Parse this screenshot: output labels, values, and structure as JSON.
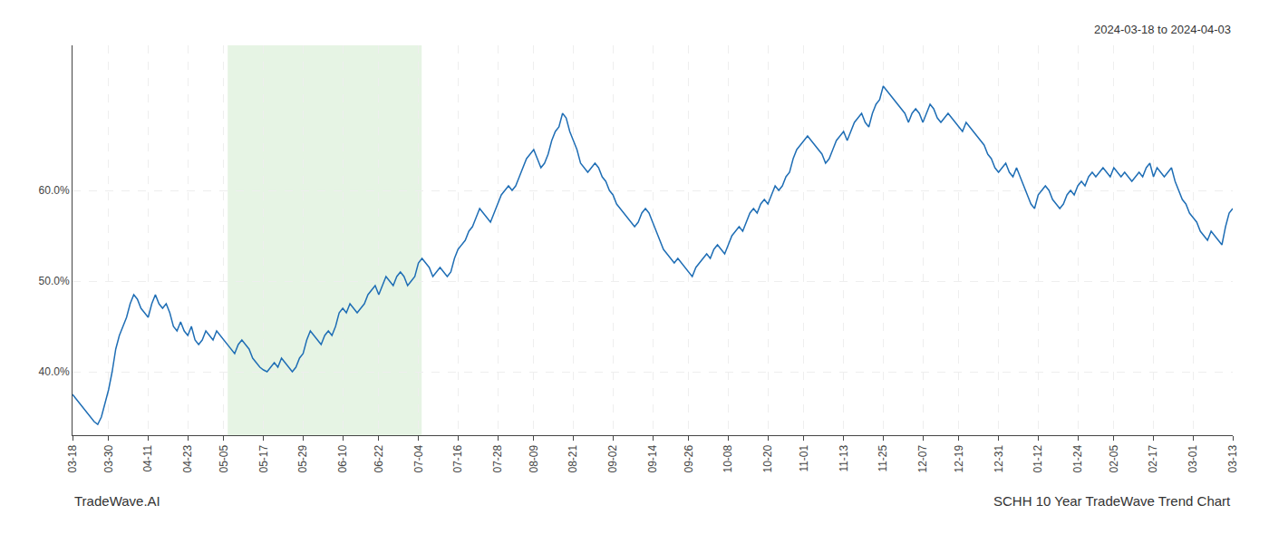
{
  "chart_data": {
    "type": "line",
    "annotations": [
      "2024-03-18 to 2024-04-03",
      "TradeWave.AI",
      "SCHH 10 Year TradeWave Trend Chart"
    ],
    "color": "#1f6eb5",
    "grid": true,
    "highlight": {
      "x": [
        43.0667,
        96.9
      ],
      "color": "#d6ecd2"
    },
    "ylim": [
      33,
      76
    ],
    "yticks": [
      {
        "value": 40.0,
        "label": "40.0%"
      },
      {
        "value": 50.0,
        "label": "50.0%"
      },
      {
        "value": 60.0,
        "label": "60.0%"
      }
    ],
    "categories": [
      "03-18",
      null,
      null,
      null,
      null,
      null,
      null,
      null,
      null,
      null,
      "03-30",
      null,
      null,
      null,
      null,
      null,
      null,
      null,
      null,
      null,
      null,
      "04-11",
      null,
      null,
      null,
      null,
      null,
      null,
      null,
      null,
      null,
      null,
      "04-23",
      null,
      null,
      null,
      null,
      null,
      null,
      null,
      null,
      null,
      "05-05",
      null,
      null,
      null,
      null,
      null,
      null,
      null,
      null,
      null,
      null,
      "05-17",
      null,
      null,
      null,
      null,
      null,
      null,
      null,
      null,
      null,
      null,
      "05-29",
      null,
      null,
      null,
      null,
      null,
      null,
      null,
      null,
      null,
      null,
      "06-10",
      null,
      null,
      null,
      null,
      null,
      null,
      null,
      null,
      null,
      "06-22",
      null,
      null,
      null,
      null,
      null,
      null,
      null,
      null,
      null,
      null,
      "07-04",
      null,
      null,
      null,
      null,
      null,
      null,
      null,
      null,
      null,
      null,
      "07-16",
      null,
      null,
      null,
      null,
      null,
      null,
      null,
      null,
      null,
      null,
      "07-28",
      null,
      null,
      null,
      null,
      null,
      null,
      null,
      null,
      null,
      "08-09",
      null,
      null,
      null,
      null,
      null,
      null,
      null,
      null,
      null,
      null,
      "08-21",
      null,
      null,
      null,
      null,
      null,
      null,
      null,
      null,
      null,
      null,
      "09-02",
      null,
      null,
      null,
      null,
      null,
      null,
      null,
      null,
      null,
      null,
      "09-14",
      null,
      null,
      null,
      null,
      null,
      null,
      null,
      null,
      null,
      "09-26",
      null,
      null,
      null,
      null,
      null,
      null,
      null,
      null,
      null,
      null,
      "10-08",
      null,
      null,
      null,
      null,
      null,
      null,
      null,
      null,
      null,
      null,
      "10-20",
      null,
      null,
      null,
      null,
      null,
      null,
      null,
      null,
      null,
      "11-01",
      null,
      null,
      null,
      null,
      null,
      null,
      null,
      null,
      null,
      null,
      "11-13",
      null,
      null,
      null,
      null,
      null,
      null,
      null,
      null,
      null,
      null,
      "11-25",
      null,
      null,
      null,
      null,
      null,
      null,
      null,
      null,
      null,
      null,
      "12-07",
      null,
      null,
      null,
      null,
      null,
      null,
      null,
      null,
      null,
      "12-19",
      null,
      null,
      null,
      null,
      null,
      null,
      null,
      null,
      null,
      null,
      "12-31",
      null,
      null,
      null,
      null,
      null,
      null,
      null,
      null,
      null,
      null,
      "01-12",
      null,
      null,
      null,
      null,
      null,
      null,
      null,
      null,
      null,
      null,
      "01-24",
      null,
      null,
      null,
      null,
      null,
      null,
      null,
      null,
      null,
      "02-05",
      null,
      null,
      null,
      null,
      null,
      null,
      null,
      null,
      null,
      null,
      "02-17",
      null,
      null,
      null,
      null,
      null,
      null,
      null,
      null,
      null,
      null,
      "03-01",
      null,
      null,
      null,
      null,
      null,
      null,
      null,
      null,
      null,
      null,
      "03-13"
    ],
    "values": [
      37.5,
      37.0,
      36.5,
      36.0,
      35.5,
      35.0,
      34.5,
      34.2,
      35.0,
      36.5,
      38.0,
      40.0,
      42.5,
      44.0,
      45.0,
      46.0,
      47.5,
      48.5,
      48.0,
      47.0,
      46.5,
      46.0,
      47.5,
      48.5,
      47.5,
      47.0,
      47.5,
      46.5,
      45.0,
      44.5,
      45.5,
      44.5,
      44.0,
      45.0,
      43.5,
      43.0,
      43.5,
      44.5,
      44.0,
      43.5,
      44.5,
      44.0,
      43.5,
      43.0,
      42.5,
      42.0,
      43.0,
      43.5,
      43.0,
      42.5,
      41.5,
      41.0,
      40.5,
      40.2,
      40.0,
      40.5,
      41.0,
      40.5,
      41.5,
      41.0,
      40.5,
      40.0,
      40.5,
      41.5,
      42.0,
      43.5,
      44.5,
      44.0,
      43.5,
      43.0,
      44.0,
      44.5,
      44.0,
      45.0,
      46.5,
      47.0,
      46.5,
      47.5,
      47.0,
      46.5,
      47.0,
      47.5,
      48.5,
      49.0,
      49.5,
      48.5,
      49.5,
      50.5,
      50.0,
      49.5,
      50.5,
      51.0,
      50.5,
      49.5,
      50.0,
      50.5,
      52.0,
      52.5,
      52.0,
      51.5,
      50.5,
      51.0,
      51.5,
      51.0,
      50.5,
      51.0,
      52.5,
      53.5,
      54.0,
      54.5,
      55.5,
      56.0,
      57.0,
      58.0,
      57.5,
      57.0,
      56.5,
      57.5,
      58.5,
      59.5,
      60.0,
      60.5,
      60.0,
      60.5,
      61.5,
      62.5,
      63.5,
      64.0,
      64.5,
      63.5,
      62.5,
      63.0,
      64.0,
      65.5,
      66.5,
      67.0,
      68.5,
      68.0,
      66.5,
      65.5,
      64.5,
      63.0,
      62.5,
      62.0,
      62.5,
      63.0,
      62.5,
      61.5,
      61.0,
      60.0,
      59.5,
      58.5,
      58.0,
      57.5,
      57.0,
      56.5,
      56.0,
      56.5,
      57.5,
      58.0,
      57.5,
      56.5,
      55.5,
      54.5,
      53.5,
      53.0,
      52.5,
      52.0,
      52.5,
      52.0,
      51.5,
      51.0,
      50.5,
      51.5,
      52.0,
      52.5,
      53.0,
      52.5,
      53.5,
      54.0,
      53.5,
      53.0,
      54.0,
      55.0,
      55.5,
      56.0,
      55.5,
      56.5,
      57.5,
      58.0,
      57.5,
      58.5,
      59.0,
      58.5,
      59.5,
      60.5,
      60.0,
      60.5,
      61.5,
      62.0,
      63.5,
      64.5,
      65.0,
      65.5,
      66.0,
      65.5,
      65.0,
      64.5,
      64.0,
      63.0,
      63.5,
      64.5,
      65.5,
      66.0,
      66.5,
      65.5,
      66.5,
      67.5,
      68.0,
      68.5,
      67.5,
      67.0,
      68.5,
      69.5,
      70.0,
      71.5,
      71.0,
      70.5,
      70.0,
      69.5,
      69.0,
      68.5,
      67.5,
      68.5,
      69.0,
      68.5,
      67.5,
      68.5,
      69.5,
      69.0,
      68.0,
      67.5,
      68.0,
      68.5,
      68.0,
      67.5,
      67.0,
      66.5,
      67.5,
      67.0,
      66.5,
      66.0,
      65.5,
      65.0,
      64.0,
      63.5,
      62.5,
      62.0,
      62.5,
      63.0,
      62.0,
      61.5,
      62.5,
      61.5,
      60.5,
      59.5,
      58.5,
      58.0,
      59.5,
      60.0,
      60.5,
      60.0,
      59.0,
      58.5,
      58.0,
      58.5,
      59.5,
      60.0,
      59.5,
      60.5,
      61.0,
      60.5,
      61.5,
      62.0,
      61.5,
      62.0,
      62.5,
      62.0,
      61.5,
      62.5,
      62.0,
      61.5,
      62.0,
      61.5,
      61.0,
      61.5,
      62.0,
      61.5,
      62.5,
      63.0,
      61.5,
      62.5,
      62.0,
      61.5,
      62.0,
      62.5,
      61.0,
      60.0,
      59.0,
      58.5,
      57.5,
      57.0,
      56.5,
      55.5,
      55.0,
      54.5,
      55.5,
      55.0,
      54.5,
      54.0,
      56.0,
      57.5,
      58.0
    ]
  }
}
